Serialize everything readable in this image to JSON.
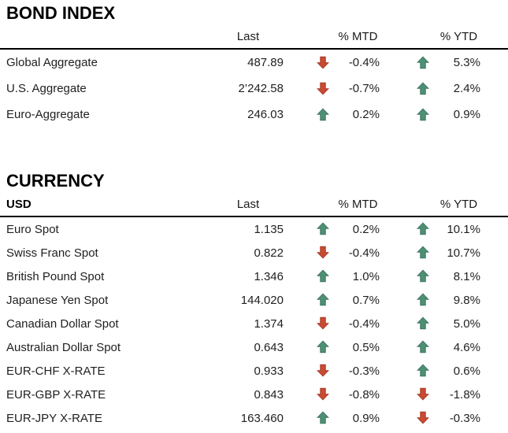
{
  "accent_colors": {
    "up_green_fill": "#4E9075",
    "up_green_edge": "#3C7560",
    "down_red_fill": "#C84B32",
    "down_red_edge": "#A63A24",
    "rule_black": "#000000",
    "text": "#1A1A1A"
  },
  "tables": [
    {
      "title": "BOND INDEX",
      "header": {
        "name": "",
        "last": "Last",
        "mtd": "% MTD",
        "ytd": "% YTD"
      },
      "rows": [
        {
          "name": "Global Aggregate",
          "last": "487.89",
          "mtd_dir": "down",
          "mtd": "-0.4%",
          "ytd_dir": "up",
          "ytd": "5.3%"
        },
        {
          "name": "U.S. Aggregate",
          "last": "2’242.58",
          "mtd_dir": "down",
          "mtd": "-0.7%",
          "ytd_dir": "up",
          "ytd": "2.4%"
        },
        {
          "name": "Euro-Aggregate",
          "last": "246.03",
          "mtd_dir": "up",
          "mtd": "0.2%",
          "ytd_dir": "up",
          "ytd": "0.9%"
        }
      ]
    },
    {
      "title": "CURRENCY",
      "header": {
        "name": "USD",
        "last": "Last",
        "mtd": "% MTD",
        "ytd": "% YTD"
      },
      "rows": [
        {
          "name": "Euro Spot",
          "last": "1.135",
          "mtd_dir": "up",
          "mtd": "0.2%",
          "ytd_dir": "up",
          "ytd": "10.1%"
        },
        {
          "name": "Swiss Franc Spot",
          "last": "0.822",
          "mtd_dir": "down",
          "mtd": "-0.4%",
          "ytd_dir": "up",
          "ytd": "10.7%"
        },
        {
          "name": "British Pound Spot",
          "last": "1.346",
          "mtd_dir": "up",
          "mtd": "1.0%",
          "ytd_dir": "up",
          "ytd": "8.1%"
        },
        {
          "name": "Japanese Yen Spot",
          "last": "144.020",
          "mtd_dir": "up",
          "mtd": "0.7%",
          "ytd_dir": "up",
          "ytd": "9.8%"
        },
        {
          "name": "Canadian Dollar Spot",
          "last": "1.374",
          "mtd_dir": "down",
          "mtd": "-0.4%",
          "ytd_dir": "up",
          "ytd": "5.0%"
        },
        {
          "name": "Australian Dollar Spot",
          "last": "0.643",
          "mtd_dir": "up",
          "mtd": "0.5%",
          "ytd_dir": "up",
          "ytd": "4.6%"
        },
        {
          "name": "EUR-CHF X-RATE",
          "last": "0.933",
          "mtd_dir": "down",
          "mtd": "-0.3%",
          "ytd_dir": "up",
          "ytd": "0.6%"
        },
        {
          "name": "EUR-GBP X-RATE",
          "last": "0.843",
          "mtd_dir": "down",
          "mtd": "-0.8%",
          "ytd_dir": "down",
          "ytd": "-1.8%"
        },
        {
          "name": "EUR-JPY X-RATE",
          "last": "163.460",
          "mtd_dir": "up",
          "mtd": "0.9%",
          "ytd_dir": "down",
          "ytd": "-0.3%"
        }
      ]
    }
  ]
}
